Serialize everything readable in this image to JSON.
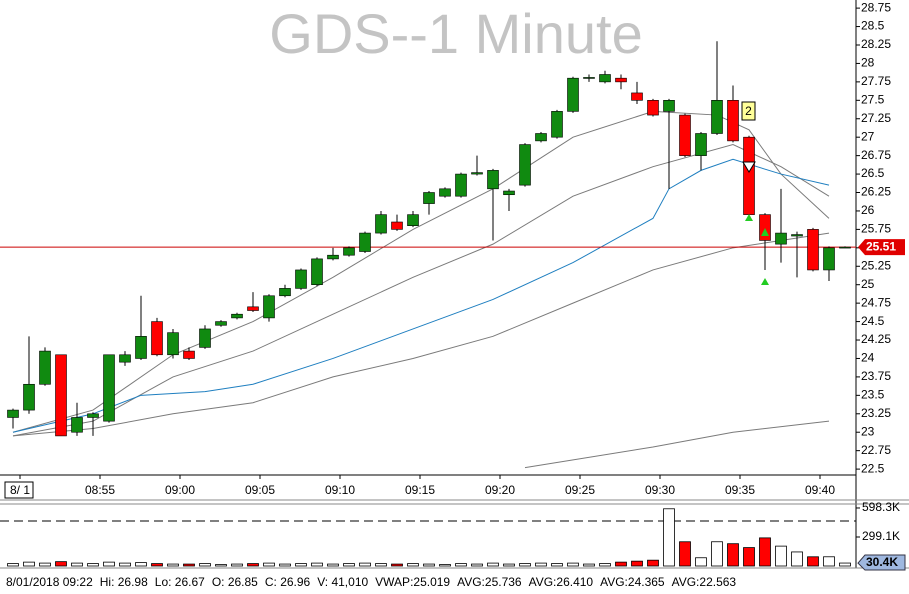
{
  "chart_data": {
    "type": "candlestick",
    "title": "GDS--1 Minute",
    "categories": [
      "8/ 1",
      null,
      null,
      null,
      null,
      "08:55",
      null,
      null,
      null,
      null,
      "09:00",
      null,
      null,
      null,
      null,
      "09:05",
      null,
      null,
      null,
      null,
      "09:10",
      null,
      null,
      null,
      null,
      "09:15",
      null,
      null,
      null,
      null,
      "09:20",
      null,
      null,
      null,
      null,
      "09:25",
      null,
      null,
      null,
      null,
      "09:30",
      null,
      null,
      null,
      null,
      "09:35",
      null,
      null,
      null,
      null,
      "09:40",
      null,
      null
    ],
    "open": [
      23.2,
      23.3,
      23.65,
      24.05,
      23.0,
      23.2,
      23.15,
      23.95,
      24.0,
      24.5,
      24.05,
      24.1,
      24.15,
      24.45,
      24.55,
      24.7,
      24.55,
      24.85,
      24.95,
      25.0,
      25.35,
      25.4,
      25.45,
      25.7,
      25.85,
      25.8,
      26.1,
      26.2,
      26.2,
      26.5,
      26.3,
      26.22,
      26.35,
      26.95,
      27.0,
      27.35,
      27.8,
      27.75,
      27.8,
      27.6,
      27.5,
      27.35,
      27.3,
      26.75,
      27.05,
      27.5,
      27.0,
      25.95,
      25.55,
      25.66,
      25.75,
      25.2,
      25.5
    ],
    "high": [
      23.32,
      24.3,
      24.15,
      24.05,
      23.4,
      23.27,
      24.05,
      24.1,
      24.85,
      24.55,
      24.4,
      24.15,
      24.45,
      24.52,
      24.62,
      24.9,
      24.87,
      25.0,
      25.22,
      25.37,
      25.5,
      25.52,
      25.72,
      26.0,
      25.95,
      26.0,
      26.27,
      26.32,
      26.52,
      26.75,
      26.57,
      26.3,
      26.92,
      27.07,
      27.37,
      27.82,
      27.85,
      27.9,
      27.85,
      27.75,
      27.52,
      27.52,
      27.32,
      27.07,
      28.3,
      27.7,
      27.02,
      25.97,
      26.3,
      25.72,
      25.77,
      25.52,
      25.52
    ],
    "low": [
      23.05,
      23.25,
      23.63,
      22.95,
      22.95,
      22.95,
      23.13,
      23.9,
      23.98,
      24.03,
      24.0,
      23.98,
      24.13,
      24.43,
      24.53,
      24.63,
      24.5,
      24.83,
      24.93,
      24.98,
      25.33,
      25.38,
      25.43,
      25.68,
      25.73,
      25.78,
      25.95,
      26.18,
      26.18,
      26.48,
      25.6,
      26.0,
      26.33,
      26.93,
      26.98,
      27.33,
      27.75,
      27.73,
      27.65,
      27.45,
      27.28,
      26.3,
      26.73,
      26.55,
      27.03,
      26.93,
      25.9,
      25.2,
      25.3,
      25.1,
      25.18,
      25.05,
      25.5
    ],
    "close": [
      23.3,
      23.65,
      24.1,
      22.95,
      23.2,
      23.25,
      24.05,
      24.05,
      24.3,
      24.05,
      24.35,
      24.0,
      24.4,
      24.5,
      24.6,
      24.65,
      24.85,
      24.95,
      25.2,
      25.35,
      25.4,
      25.5,
      25.7,
      25.95,
      25.75,
      25.95,
      26.25,
      26.3,
      26.5,
      26.52,
      26.55,
      26.27,
      26.9,
      27.05,
      27.35,
      27.8,
      27.81,
      27.85,
      27.75,
      27.5,
      27.3,
      27.5,
      26.75,
      27.05,
      27.5,
      26.95,
      25.95,
      25.6,
      25.7,
      25.68,
      25.2,
      25.5,
      25.51
    ],
    "up_color": "#108a10",
    "down_color": "#ff0000",
    "ylim": [
      22.42,
      28.86
    ],
    "yticks": [
      22.5,
      22.75,
      23,
      23.25,
      23.5,
      23.75,
      24,
      24.25,
      24.5,
      24.75,
      25,
      25.25,
      25.5,
      25.75,
      26,
      26.25,
      26.5,
      26.75,
      27,
      27.25,
      27.5,
      27.75,
      28,
      28.25,
      28.5,
      28.75
    ],
    "lines": [
      {
        "color": "#7a7a7a",
        "x": [
          0,
          5,
          10,
          15,
          20,
          25,
          30,
          35,
          40,
          44,
          46,
          48,
          51
        ],
        "values": [
          23.0,
          23.3,
          24.05,
          24.5,
          25.1,
          25.75,
          26.3,
          27.0,
          27.35,
          27.3,
          27.1,
          26.5,
          25.9
        ]
      },
      {
        "color": "#7a7a7a",
        "x": [
          0,
          5,
          10,
          15,
          20,
          25,
          30,
          35,
          40,
          45,
          48,
          51
        ],
        "values": [
          22.95,
          23.15,
          23.75,
          24.1,
          24.6,
          25.1,
          25.55,
          26.2,
          26.6,
          26.9,
          26.6,
          26.2
        ]
      },
      {
        "color": "#1f7fc0",
        "x": [
          0,
          5,
          8,
          12,
          15,
          20,
          25,
          30,
          35,
          40,
          41,
          43,
          45,
          48,
          51
        ],
        "values": [
          23.0,
          23.25,
          23.5,
          23.55,
          23.65,
          24.0,
          24.4,
          24.8,
          25.3,
          25.9,
          26.3,
          26.55,
          26.7,
          26.5,
          26.35
        ]
      },
      {
        "color": "#7a7a7a",
        "x": [
          0,
          5,
          10,
          15,
          20,
          25,
          30,
          35,
          40,
          45,
          51
        ],
        "values": [
          22.95,
          23.05,
          23.25,
          23.4,
          23.75,
          24.0,
          24.3,
          24.75,
          25.2,
          25.5,
          25.7
        ]
      },
      {
        "color": "#7a7a7a",
        "x": [
          32,
          40,
          45,
          51
        ],
        "values": [
          22.52,
          22.8,
          23.0,
          23.15
        ]
      }
    ],
    "last_price": 25.51,
    "signal_label": "2",
    "volume": {
      "values": [
        25000,
        40000,
        30000,
        45000,
        30000,
        25000,
        40000,
        30000,
        35000,
        25000,
        20000,
        20000,
        25000,
        15000,
        20000,
        25000,
        30000,
        20000,
        25000,
        30000,
        20000,
        25000,
        30000,
        25000,
        20000,
        25000,
        20000,
        15000,
        25000,
        20000,
        30000,
        20000,
        25000,
        30000,
        25000,
        30000,
        20000,
        25000,
        40000,
        50000,
        60000,
        590000,
        250000,
        85000,
        250000,
        230000,
        190000,
        290000,
        205000,
        145000,
        95000,
        95000,
        30400
      ],
      "ylim": [
        0,
        629000
      ],
      "yticks": [
        {
          "value": 598300,
          "label": "598.3K"
        },
        {
          "value": 299100,
          "label": "299.1K"
        }
      ],
      "last": {
        "value": 30400,
        "label": "30.4K"
      }
    },
    "footer": [
      "8/01/2018 09:22",
      "Hi: 26.98",
      "Lo: 26.67",
      "O: 26.85",
      "C: 26.96",
      "V: 41,010",
      "VWAP:25.019",
      "AVG:25.736",
      "AVG:26.410",
      "AVG:24.365",
      "AVG:22.563"
    ]
  }
}
